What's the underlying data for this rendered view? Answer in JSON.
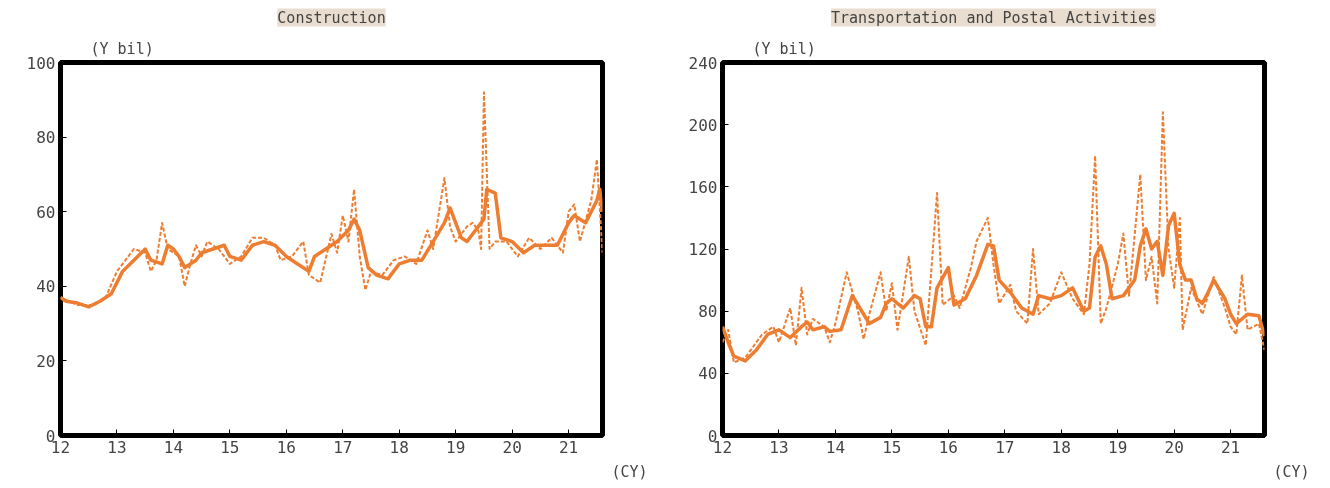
{
  "chart_data": [
    {
      "type": "line",
      "title": "Construction",
      "ylabel": "(Y bil)",
      "xlabel": "(CY)",
      "xlim": [
        12,
        21.6
      ],
      "ylim": [
        0,
        100
      ],
      "xticks": [
        12,
        13,
        14,
        15,
        16,
        17,
        18,
        19,
        20,
        21
      ],
      "yticks": [
        0,
        20,
        40,
        60,
        80,
        100
      ],
      "grid": false,
      "series": [
        {
          "color": "#ed7d31",
          "line_style": "solid",
          "x": [
            12.0,
            12.1,
            12.3,
            12.5,
            12.7,
            12.9,
            13.1,
            13.3,
            13.5,
            13.6,
            13.8,
            13.9,
            14.0,
            14.1,
            14.2,
            14.4,
            14.5,
            14.7,
            14.9,
            15.0,
            15.2,
            15.4,
            15.6,
            15.8,
            16.0,
            16.2,
            16.4,
            16.5,
            16.7,
            16.9,
            17.1,
            17.2,
            17.3,
            17.45,
            17.6,
            17.8,
            18.0,
            18.2,
            18.4,
            18.6,
            18.8,
            18.9,
            19.0,
            19.1,
            19.2,
            19.4,
            19.5,
            19.55,
            19.7,
            19.8,
            20.0,
            20.2,
            20.4,
            20.6,
            20.8,
            21.0,
            21.1,
            21.3,
            21.5,
            21.55,
            21.6
          ],
          "values": [
            37,
            36,
            35.5,
            34.5,
            36,
            38,
            44,
            47,
            50,
            47,
            46,
            51,
            50,
            48,
            45,
            47,
            49,
            50,
            51,
            48,
            47,
            51,
            52,
            51,
            48,
            46,
            44,
            48,
            50,
            52,
            55,
            58,
            55,
            45,
            43,
            42,
            46,
            47,
            47,
            52,
            57,
            61,
            57,
            53,
            52,
            56,
            58,
            66,
            65,
            53,
            52,
            49,
            51,
            51,
            51,
            57,
            59,
            57,
            63,
            66,
            60
          ]
        },
        {
          "color": "#ed7d31",
          "line_style": "dashed",
          "x": [
            12.0,
            12.3,
            12.6,
            12.8,
            13.0,
            13.3,
            13.5,
            13.6,
            13.7,
            13.8,
            13.9,
            14.1,
            14.2,
            14.3,
            14.4,
            14.5,
            14.6,
            14.8,
            15.0,
            15.2,
            15.4,
            15.6,
            15.8,
            15.9,
            16.1,
            16.3,
            16.4,
            16.6,
            16.8,
            16.9,
            17.0,
            17.1,
            17.2,
            17.3,
            17.4,
            17.5,
            17.7,
            17.9,
            18.1,
            18.3,
            18.5,
            18.6,
            18.8,
            18.9,
            19.0,
            19.2,
            19.3,
            19.4,
            19.45,
            19.5,
            19.6,
            19.7,
            19.9,
            20.1,
            20.3,
            20.5,
            20.7,
            20.9,
            21.0,
            21.1,
            21.2,
            21.4,
            21.5,
            21.6
          ],
          "values": [
            37,
            35,
            35,
            37,
            44,
            50,
            49,
            44,
            47,
            57,
            50,
            48,
            40,
            46,
            51,
            48,
            52,
            50,
            46,
            48,
            53,
            53,
            51,
            47,
            48,
            52,
            43,
            41,
            54,
            49,
            59,
            52,
            66,
            48,
            39,
            44,
            43,
            47,
            48,
            46,
            55,
            50,
            69,
            56,
            52,
            56,
            57,
            55,
            50,
            92,
            50,
            52,
            52,
            48,
            53,
            50,
            53,
            49,
            60,
            62,
            52,
            63,
            74,
            49
          ]
        }
      ]
    },
    {
      "type": "line",
      "title": "Transportation and Postal Activities",
      "ylabel": "(Y bil)",
      "xlabel": "(CY)",
      "xlim": [
        12,
        21.6
      ],
      "ylim": [
        0,
        240
      ],
      "xticks": [
        12,
        13,
        14,
        15,
        16,
        17,
        18,
        19,
        20,
        21
      ],
      "yticks": [
        0,
        40,
        80,
        120,
        160,
        200,
        240
      ],
      "grid": false,
      "series": [
        {
          "color": "#ed7d31",
          "line_style": "solid",
          "x": [
            12.0,
            12.1,
            12.2,
            12.4,
            12.6,
            12.8,
            13.0,
            13.2,
            13.4,
            13.5,
            13.6,
            13.8,
            13.9,
            14.1,
            14.3,
            14.5,
            14.6,
            14.8,
            14.9,
            15.0,
            15.2,
            15.4,
            15.5,
            15.6,
            15.7,
            15.8,
            16.0,
            16.1,
            16.3,
            16.5,
            16.7,
            16.8,
            16.9,
            17.1,
            17.3,
            17.5,
            17.6,
            17.8,
            18.0,
            18.2,
            18.4,
            18.5,
            18.6,
            18.7,
            18.8,
            18.9,
            19.1,
            19.3,
            19.4,
            19.5,
            19.6,
            19.7,
            19.8,
            19.9,
            20.0,
            20.1,
            20.2,
            20.3,
            20.4,
            20.5,
            20.6,
            20.7,
            20.9,
            21.0,
            21.1,
            21.3,
            21.5,
            21.6
          ],
          "values": [
            70,
            60,
            51,
            48,
            55,
            65,
            68,
            63,
            70,
            73,
            68,
            70,
            67,
            68,
            90,
            78,
            72,
            76,
            85,
            88,
            82,
            90,
            88,
            70,
            70,
            95,
            108,
            84,
            88,
            103,
            123,
            122,
            100,
            92,
            82,
            78,
            90,
            88,
            90,
            95,
            80,
            82,
            115,
            122,
            110,
            88,
            90,
            100,
            122,
            133,
            120,
            125,
            103,
            135,
            143,
            110,
            100,
            100,
            88,
            85,
            92,
            100,
            88,
            78,
            72,
            78,
            77,
            64
          ]
        },
        {
          "color": "#ed7d31",
          "line_style": "dashed",
          "x": [
            12.0,
            12.1,
            12.2,
            12.4,
            12.7,
            12.9,
            13.0,
            13.2,
            13.3,
            13.4,
            13.5,
            13.6,
            13.8,
            13.9,
            14.0,
            14.2,
            14.4,
            14.5,
            14.6,
            14.8,
            14.9,
            15.0,
            15.1,
            15.3,
            15.4,
            15.6,
            15.8,
            15.9,
            16.1,
            16.2,
            16.4,
            16.5,
            16.7,
            16.8,
            16.9,
            17.1,
            17.2,
            17.4,
            17.5,
            17.6,
            17.8,
            18.0,
            18.2,
            18.4,
            18.5,
            18.6,
            18.7,
            18.8,
            19.0,
            19.1,
            19.2,
            19.4,
            19.5,
            19.6,
            19.7,
            19.8,
            19.9,
            20.0,
            20.1,
            20.15,
            20.3,
            20.5,
            20.7,
            20.9,
            21.0,
            21.1,
            21.2,
            21.3,
            21.5,
            21.6
          ],
          "values": [
            60,
            68,
            47,
            50,
            65,
            70,
            60,
            82,
            58,
            95,
            65,
            75,
            70,
            60,
            72,
            105,
            80,
            62,
            78,
            105,
            80,
            98,
            68,
            115,
            80,
            58,
            156,
            84,
            90,
            82,
            108,
            125,
            140,
            110,
            85,
            97,
            80,
            72,
            120,
            78,
            85,
            105,
            88,
            78,
            110,
            180,
            72,
            82,
            110,
            130,
            90,
            168,
            100,
            115,
            85,
            208,
            120,
            95,
            140,
            68,
            95,
            78,
            102,
            82,
            70,
            65,
            103,
            68,
            72,
            55
          ]
        }
      ]
    }
  ]
}
